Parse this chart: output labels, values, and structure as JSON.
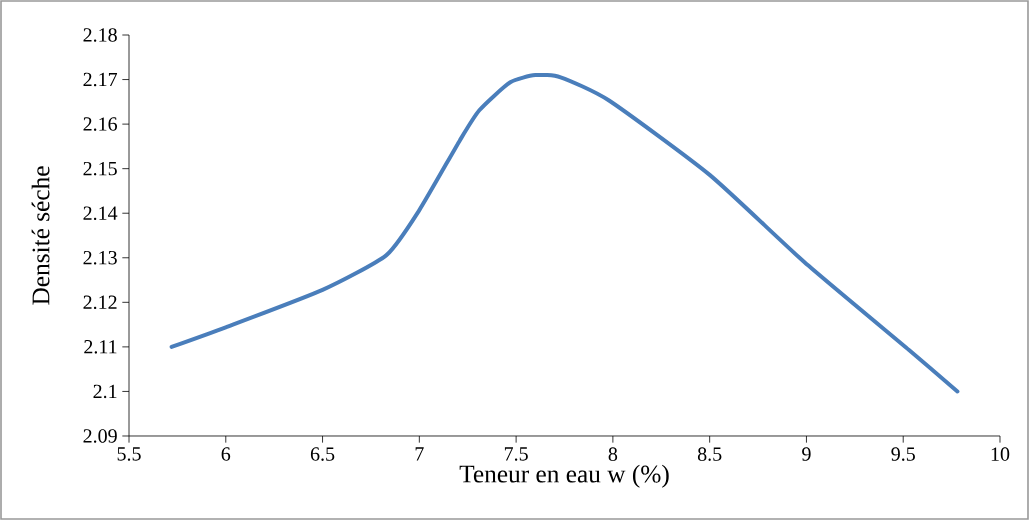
{
  "chart_data": {
    "type": "line",
    "xlabel": "Teneur en eau w (%)",
    "ylabel": "Densité séche",
    "series": [
      {
        "color": "#4a7ebb",
        "x": [
          5.72,
          6.0,
          6.5,
          6.83,
          7.0,
          7.21,
          7.31,
          7.47,
          7.6,
          7.73,
          7.98,
          8.5,
          8.99,
          9.53,
          9.78
        ],
        "values": [
          2.11,
          2.1144,
          2.1228,
          2.1306,
          2.1407,
          2.1564,
          2.1631,
          2.1694,
          2.171,
          2.1705,
          2.1653,
          2.1486,
          2.129,
          2.1093,
          2.1
        ]
      }
    ],
    "xlim": [
      5.5,
      10
    ],
    "ylim": [
      2.09,
      2.18
    ],
    "xticks": [
      5.5,
      6,
      6.5,
      7,
      7.5,
      8,
      8.5,
      9,
      9.5,
      10
    ],
    "yticks": [
      2.09,
      2.1,
      2.11,
      2.12,
      2.13,
      2.14,
      2.15,
      2.16,
      2.17,
      2.18
    ],
    "grid": false,
    "marker": "none",
    "line_style": "solid"
  }
}
